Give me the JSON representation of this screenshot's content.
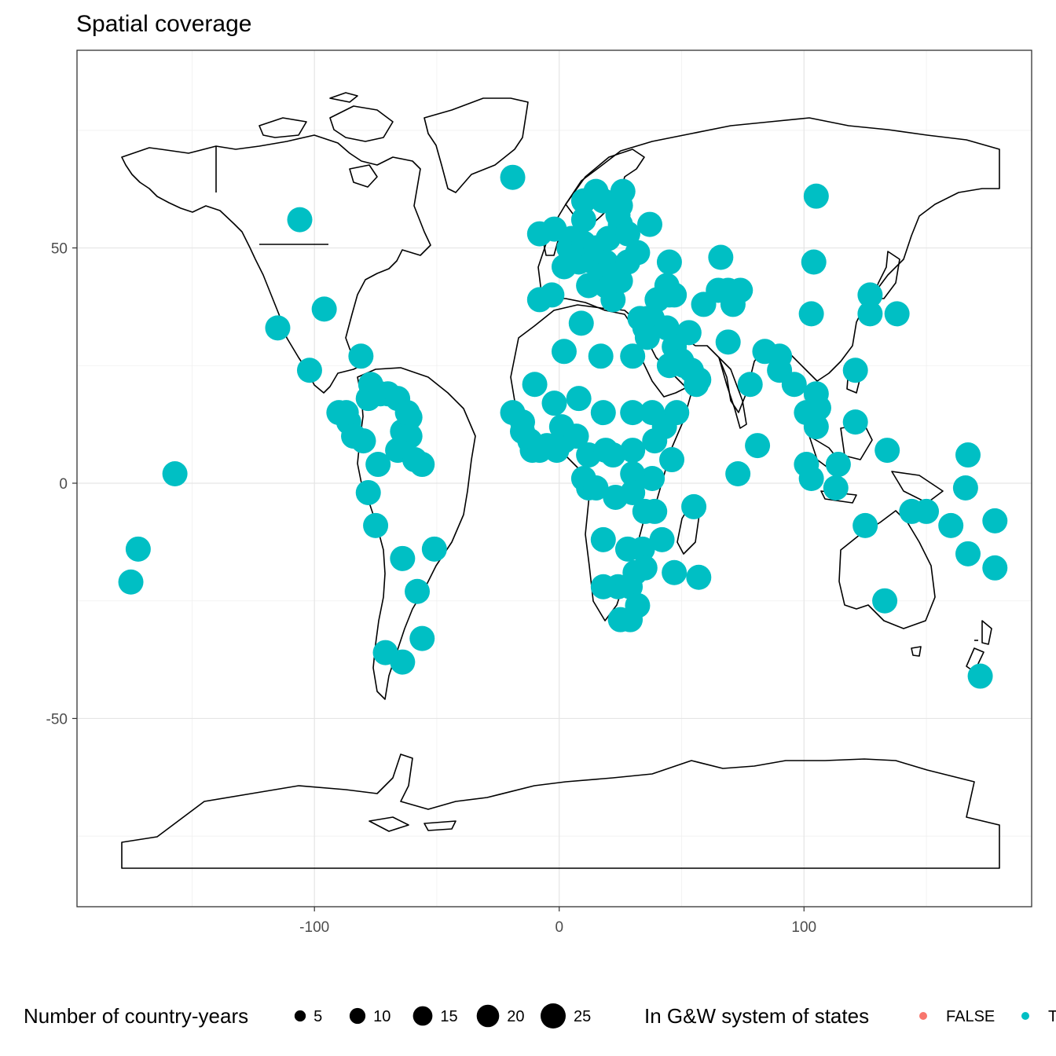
{
  "chart_data": {
    "type": "scatter",
    "title": "Spatial coverage",
    "xlabel": "",
    "ylabel": "",
    "xlim": [
      -197,
      193
    ],
    "ylim": [
      -90,
      92
    ],
    "x_ticks": [
      -100,
      0,
      100
    ],
    "y_ticks": [
      -50,
      0,
      50
    ],
    "x_tick_labels": [
      "-100",
      "0",
      "100"
    ],
    "y_tick_labels": [
      "-50",
      "0",
      "50"
    ],
    "grid": true,
    "background": "basemap: world coastlines",
    "legend": {
      "position": "bottom",
      "size": {
        "title": "Number of country-years",
        "breaks": [
          5,
          10,
          15,
          20,
          25
        ],
        "labels": [
          "5",
          "10",
          "15",
          "20",
          "25"
        ]
      },
      "color": {
        "title": "In G&W system of states",
        "entries": [
          {
            "label": "FALSE",
            "color": "#F8766D"
          },
          {
            "label": "TRUE",
            "color": "#00BFC4"
          }
        ]
      }
    },
    "series": [
      {
        "name": "TRUE",
        "color": "#00BFC4",
        "size": 25,
        "points": [
          [
            -106,
            56
          ],
          [
            -96,
            37
          ],
          [
            -115,
            33
          ],
          [
            -102,
            24
          ],
          [
            -19,
            65
          ],
          [
            105,
            61
          ],
          [
            -157,
            2
          ],
          [
            -172,
            -14
          ],
          [
            -175,
            -21
          ],
          [
            -87,
            15
          ],
          [
            -90,
            15
          ],
          [
            -86,
            13
          ],
          [
            -84,
            10
          ],
          [
            -80,
            9
          ],
          [
            -77,
            21
          ],
          [
            -78,
            18
          ],
          [
            -73,
            19
          ],
          [
            -70,
            19
          ],
          [
            -66,
            18
          ],
          [
            -61,
            14
          ],
          [
            -64,
            11
          ],
          [
            -61,
            10
          ],
          [
            -62,
            15
          ],
          [
            -66,
            7
          ],
          [
            -74,
            4
          ],
          [
            -59,
            5
          ],
          [
            -56,
            4
          ],
          [
            -78,
            -2
          ],
          [
            -75,
            -9
          ],
          [
            -64,
            -16
          ],
          [
            -51,
            -14
          ],
          [
            -58,
            -23
          ],
          [
            -56,
            -33
          ],
          [
            -71,
            -36
          ],
          [
            -64,
            -38
          ],
          [
            -81,
            27
          ],
          [
            -8,
            53
          ],
          [
            -2,
            54
          ],
          [
            -3,
            40
          ],
          [
            -8,
            39
          ],
          [
            2,
            46
          ],
          [
            4,
            50
          ],
          [
            5,
            52
          ],
          [
            6,
            49
          ],
          [
            8,
            47
          ],
          [
            10,
            51
          ],
          [
            12,
            42
          ],
          [
            14,
            47
          ],
          [
            15,
            50
          ],
          [
            19,
            47
          ],
          [
            20,
            44
          ],
          [
            17,
            44
          ],
          [
            19,
            42
          ],
          [
            21,
            42
          ],
          [
            22,
            39
          ],
          [
            25,
            43
          ],
          [
            20,
            52
          ],
          [
            25,
            55
          ],
          [
            24,
            57
          ],
          [
            25,
            59
          ],
          [
            26,
            62
          ],
          [
            10,
            60
          ],
          [
            15,
            62
          ],
          [
            10,
            56
          ],
          [
            18,
            60
          ],
          [
            28,
            53
          ],
          [
            32,
            49
          ],
          [
            28,
            47
          ],
          [
            37,
            55
          ],
          [
            45,
            47
          ],
          [
            44,
            42
          ],
          [
            45,
            40
          ],
          [
            47,
            40
          ],
          [
            40,
            39
          ],
          [
            33,
            35
          ],
          [
            35,
            33
          ],
          [
            36,
            35
          ],
          [
            38,
            35
          ],
          [
            36,
            31
          ],
          [
            44,
            33
          ],
          [
            45,
            25
          ],
          [
            47,
            29
          ],
          [
            51,
            25
          ],
          [
            50,
            26
          ],
          [
            54,
            24
          ],
          [
            56,
            21
          ],
          [
            57,
            22
          ],
          [
            48,
            15
          ],
          [
            53,
            32
          ],
          [
            66,
            48
          ],
          [
            65,
            41
          ],
          [
            59,
            38
          ],
          [
            69,
            41
          ],
          [
            74,
            41
          ],
          [
            71,
            38
          ],
          [
            69,
            30
          ],
          [
            84,
            28
          ],
          [
            90,
            27
          ],
          [
            90,
            24
          ],
          [
            78,
            21
          ],
          [
            81,
            8
          ],
          [
            73,
            2
          ],
          [
            96,
            21
          ],
          [
            101,
            15
          ],
          [
            105,
            19
          ],
          [
            106,
            16
          ],
          [
            105,
            12
          ],
          [
            101,
            4
          ],
          [
            103,
            1
          ],
          [
            114,
            4
          ],
          [
            113,
            -1
          ],
          [
            121,
            13
          ],
          [
            125,
            -9
          ],
          [
            134,
            7
          ],
          [
            144,
            -6
          ],
          [
            150,
            -6
          ],
          [
            160,
            -9
          ],
          [
            167,
            6
          ],
          [
            166,
            -1
          ],
          [
            167,
            -15
          ],
          [
            178,
            -8
          ],
          [
            178,
            -18
          ],
          [
            172,
            -41
          ],
          [
            133,
            -25
          ],
          [
            104,
            47
          ],
          [
            103,
            36
          ],
          [
            127,
            40
          ],
          [
            127,
            36
          ],
          [
            138,
            36
          ],
          [
            121,
            24
          ],
          [
            -19,
            15
          ],
          [
            -15,
            13
          ],
          [
            -15,
            11
          ],
          [
            -12,
            9
          ],
          [
            -11,
            7
          ],
          [
            -8,
            7
          ],
          [
            -5,
            8
          ],
          [
            -1,
            7
          ],
          [
            2,
            9
          ],
          [
            1,
            12
          ],
          [
            -10,
            21
          ],
          [
            -2,
            17
          ],
          [
            2,
            28
          ],
          [
            8,
            18
          ],
          [
            9,
            34
          ],
          [
            17,
            27
          ],
          [
            18,
            15
          ],
          [
            7,
            10
          ],
          [
            12,
            6
          ],
          [
            10,
            1
          ],
          [
            12,
            -1
          ],
          [
            15,
            -1
          ],
          [
            19,
            7
          ],
          [
            22,
            6
          ],
          [
            23,
            -3
          ],
          [
            30,
            7
          ],
          [
            30,
            15
          ],
          [
            30,
            27
          ],
          [
            39,
            9
          ],
          [
            38,
            15
          ],
          [
            43,
            12
          ],
          [
            46,
            5
          ],
          [
            38,
            1
          ],
          [
            30,
            2
          ],
          [
            30,
            -2
          ],
          [
            35,
            -6
          ],
          [
            39,
            -6
          ],
          [
            18,
            -12
          ],
          [
            28,
            -14
          ],
          [
            34,
            -14
          ],
          [
            35,
            -18
          ],
          [
            42,
            -12
          ],
          [
            47,
            -19
          ],
          [
            57,
            -20
          ],
          [
            24,
            -22
          ],
          [
            29,
            -22
          ],
          [
            31,
            -19
          ],
          [
            18,
            -22
          ],
          [
            25,
            -29
          ],
          [
            29,
            -29
          ],
          [
            32,
            -26
          ],
          [
            55,
            -5
          ]
        ]
      }
    ]
  }
}
